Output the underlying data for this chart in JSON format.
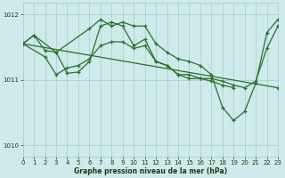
{
  "bg_color": "#ceeaea",
  "grid_color": "#a8cccc",
  "line_color": "#2d6e2d",
  "xlabel": "Graphe pression niveau de la mer (hPa)",
  "xlim": [
    0,
    23
  ],
  "ylim": [
    1009.83,
    1012.17
  ],
  "yticks": [
    1010,
    1011,
    1012
  ],
  "xticks": [
    0,
    1,
    2,
    3,
    4,
    5,
    6,
    7,
    8,
    9,
    10,
    11,
    12,
    13,
    14,
    15,
    16,
    17,
    18,
    19,
    20,
    21,
    22,
    23
  ],
  "series": [
    {
      "x": [
        0,
        1,
        2,
        3,
        4,
        5,
        6,
        7,
        8,
        9,
        10,
        11,
        12,
        13,
        14,
        15,
        16,
        17,
        18,
        19,
        20,
        21,
        22,
        23
      ],
      "y": [
        1011.55,
        1011.68,
        1011.45,
        1011.42,
        1011.1,
        1011.12,
        1011.28,
        1011.82,
        1011.88,
        1011.82,
        1011.52,
        1011.62,
        1011.28,
        1011.22,
        1011.08,
        1011.08,
        1011.02,
        1011.02,
        1010.98,
        1010.92,
        1010.88,
        1010.98,
        1011.48,
        1011.82
      ]
    },
    {
      "x": [
        0,
        1,
        3,
        6,
        7,
        8,
        9,
        10,
        11,
        12,
        13,
        14,
        15,
        16,
        17,
        18,
        19,
        20,
        21,
        22,
        23
      ],
      "y": [
        1011.55,
        1011.68,
        1011.42,
        1011.78,
        1011.92,
        1011.82,
        1011.88,
        1011.82,
        1011.82,
        1011.55,
        1011.42,
        1011.32,
        1011.28,
        1011.22,
        1011.08,
        1010.58,
        1010.38,
        1010.52,
        1010.95,
        1011.72,
        1011.92
      ]
    },
    {
      "x": [
        0,
        2,
        3,
        4,
        5,
        6,
        7,
        8,
        9,
        10,
        11,
        12,
        13,
        14,
        15,
        16,
        17,
        18,
        19
      ],
      "y": [
        1011.55,
        1011.35,
        1011.08,
        1011.18,
        1011.22,
        1011.32,
        1011.52,
        1011.58,
        1011.58,
        1011.48,
        1011.52,
        1011.28,
        1011.22,
        1011.08,
        1011.02,
        1011.02,
        1010.98,
        1010.92,
        1010.88
      ]
    },
    {
      "x": [
        0,
        23
      ],
      "y": [
        1011.55,
        1010.88
      ]
    }
  ]
}
